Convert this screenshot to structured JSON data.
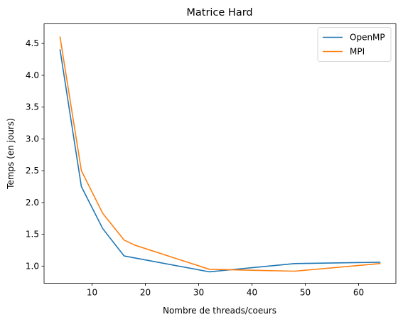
{
  "chart_data": {
    "type": "line",
    "title": "Matrice Hard",
    "xlabel": "Nombre de threads/coeurs",
    "ylabel": "Temps (en jours)",
    "xlim": [
      1,
      67
    ],
    "ylim": [
      0.73,
      4.81
    ],
    "x_ticks": [
      10,
      20,
      30,
      40,
      50,
      60
    ],
    "y_ticks": [
      1.0,
      1.5,
      2.0,
      2.5,
      3.0,
      3.5,
      4.0,
      4.5
    ],
    "grid": false,
    "legend_position": "top-right",
    "series": [
      {
        "name": "OpenMP",
        "color": "#1f77b4",
        "x": [
          4,
          8,
          12,
          16,
          32,
          48,
          64
        ],
        "y": [
          4.4,
          2.25,
          1.59,
          1.16,
          0.91,
          1.04,
          1.06
        ]
      },
      {
        "name": "MPI",
        "color": "#ff7f0e",
        "x": [
          4,
          8,
          12,
          16,
          18,
          32,
          48,
          64
        ],
        "y": [
          4.6,
          2.5,
          1.83,
          1.41,
          1.33,
          0.95,
          0.92,
          1.04
        ]
      }
    ]
  }
}
